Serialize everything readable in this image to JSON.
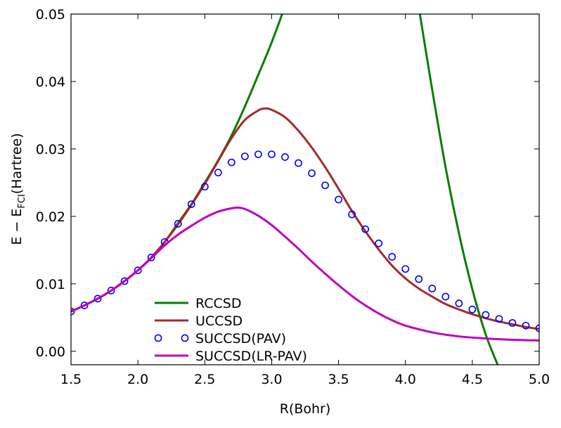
{
  "chart_data": {
    "type": "line",
    "title": "",
    "xlabel": "R(Bohr)",
    "ylabel_main": "E − E",
    "ylabel_sub": "FCI",
    "ylabel_unit": "(Hartree)",
    "xlim": [
      1.5,
      5.0
    ],
    "ylim": [
      -0.002,
      0.05
    ],
    "xticks": [
      "1.5",
      "2.0",
      "2.5",
      "3.0",
      "3.5",
      "4.0",
      "4.5",
      "5.0"
    ],
    "yticks": [
      "0.00",
      "0.01",
      "0.02",
      "0.03",
      "0.04",
      "0.05"
    ],
    "grid": false,
    "legend_position": "lower-left",
    "series": [
      {
        "name": "RCCSD",
        "style": "line",
        "color": "#008000",
        "x": [
          1.5,
          1.6,
          1.7,
          1.8,
          1.9,
          2.0,
          2.1,
          2.2,
          2.3,
          2.4,
          2.5,
          2.6,
          2.7,
          2.8,
          2.9,
          3.0,
          3.1,
          3.2,
          4.05,
          4.1,
          4.2,
          4.3,
          4.4,
          4.5,
          4.6,
          4.7
        ],
        "y": [
          0.0059,
          0.0068,
          0.0078,
          0.009,
          0.0104,
          0.012,
          0.0139,
          0.0162,
          0.019,
          0.0218,
          0.025,
          0.0283,
          0.032,
          0.0363,
          0.041,
          0.0458,
          0.0512,
          0.057,
          0.058,
          0.051,
          0.0388,
          0.0273,
          0.0175,
          0.0092,
          0.0025,
          -0.0025
        ]
      },
      {
        "name": "UCCSD",
        "style": "line",
        "color": "#A52A2A",
        "x": [
          1.5,
          1.6,
          1.7,
          1.8,
          1.9,
          2.0,
          2.1,
          2.2,
          2.3,
          2.4,
          2.5,
          2.6,
          2.7,
          2.8,
          2.9,
          2.95,
          3.0,
          3.1,
          3.2,
          3.3,
          3.4,
          3.5,
          3.6,
          3.7,
          3.8,
          3.9,
          4.0,
          4.1,
          4.2,
          4.3,
          4.4,
          4.5,
          4.6,
          4.7,
          4.8,
          4.9,
          5.0
        ],
        "y": [
          0.0059,
          0.0068,
          0.0078,
          0.009,
          0.0104,
          0.012,
          0.0139,
          0.0162,
          0.0188,
          0.0217,
          0.0248,
          0.0282,
          0.0316,
          0.0343,
          0.0357,
          0.036,
          0.0358,
          0.0347,
          0.0327,
          0.0302,
          0.0273,
          0.0241,
          0.0208,
          0.0178,
          0.0151,
          0.0127,
          0.0108,
          0.0093,
          0.0081,
          0.007,
          0.0062,
          0.0055,
          0.0049,
          0.0044,
          0.004,
          0.0036,
          0.0033
        ]
      },
      {
        "name": "SUCCSD(PAV)",
        "style": "markers",
        "color": "#0000FF",
        "x": [
          1.5,
          1.6,
          1.7,
          1.8,
          1.9,
          2.0,
          2.1,
          2.2,
          2.3,
          2.4,
          2.5,
          2.6,
          2.7,
          2.8,
          2.9,
          3.0,
          3.1,
          3.2,
          3.3,
          3.4,
          3.5,
          3.6,
          3.7,
          3.8,
          3.9,
          4.0,
          4.1,
          4.2,
          4.3,
          4.4,
          4.5,
          4.6,
          4.7,
          4.8,
          4.9,
          5.0
        ],
        "y": [
          0.0059,
          0.0068,
          0.0078,
          0.009,
          0.0104,
          0.012,
          0.0139,
          0.0162,
          0.0189,
          0.0218,
          0.0244,
          0.0265,
          0.028,
          0.0289,
          0.0292,
          0.0292,
          0.0288,
          0.0279,
          0.0264,
          0.0246,
          0.0225,
          0.0203,
          0.0181,
          0.016,
          0.014,
          0.0122,
          0.0107,
          0.0093,
          0.0081,
          0.0071,
          0.0062,
          0.0054,
          0.0048,
          0.0042,
          0.0038,
          0.0034
        ]
      },
      {
        "name": "SUCCSD(LR-PAV)",
        "style": "line",
        "color": "#BF00BF",
        "x": [
          1.5,
          1.6,
          1.7,
          1.8,
          1.9,
          2.0,
          2.1,
          2.2,
          2.3,
          2.4,
          2.5,
          2.6,
          2.7,
          2.75,
          2.8,
          2.9,
          3.0,
          3.1,
          3.2,
          3.3,
          3.4,
          3.5,
          3.6,
          3.7,
          3.8,
          3.9,
          4.0,
          4.2,
          4.4,
          4.6,
          4.8,
          5.0
        ],
        "y": [
          0.0059,
          0.0068,
          0.0078,
          0.009,
          0.0104,
          0.012,
          0.0138,
          0.0157,
          0.0173,
          0.0186,
          0.0198,
          0.0207,
          0.0212,
          0.0213,
          0.0211,
          0.0201,
          0.0187,
          0.017,
          0.0152,
          0.0133,
          0.0115,
          0.0098,
          0.0082,
          0.0068,
          0.0056,
          0.0046,
          0.0038,
          0.0028,
          0.0022,
          0.0019,
          0.0017,
          0.0016
        ]
      }
    ]
  }
}
